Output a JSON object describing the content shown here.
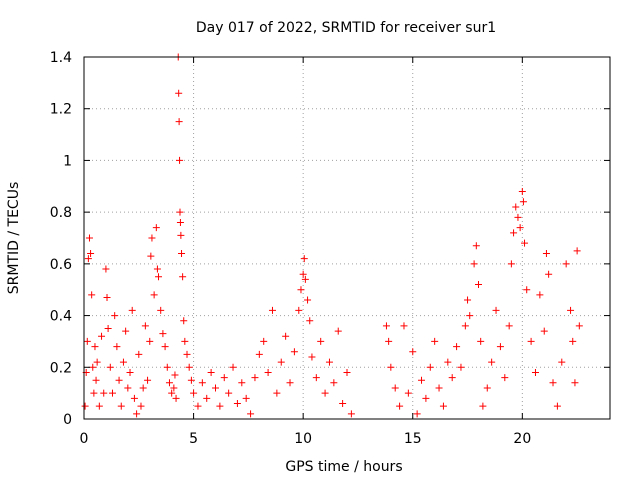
{
  "chart_data": {
    "type": "scatter",
    "title": "Day 017 of 2022, SRMTID for receiver sur1",
    "xlabel": "GPS time / hours",
    "ylabel": "SRMTID / TECUs",
    "xlim": [
      0,
      24
    ],
    "ylim": [
      0,
      1.4
    ],
    "xticks": [
      0,
      5,
      10,
      15,
      20
    ],
    "yticks": [
      0,
      0.2,
      0.4,
      0.6,
      0.8,
      1,
      1.2,
      1.4
    ],
    "ytick_labels": [
      "0",
      "0.2",
      "0.4",
      "0.6",
      "0.8",
      "1",
      "1.2",
      "1.4"
    ],
    "grid": true,
    "marker": "+",
    "series": [
      {
        "name": "SRMTID",
        "color": "#ff0000",
        "points": [
          [
            0.05,
            0.05
          ],
          [
            0.1,
            0.18
          ],
          [
            0.15,
            0.3
          ],
          [
            0.2,
            0.62
          ],
          [
            0.25,
            0.7
          ],
          [
            0.3,
            0.64
          ],
          [
            0.35,
            0.48
          ],
          [
            0.4,
            0.2
          ],
          [
            0.45,
            0.1
          ],
          [
            0.5,
            0.28
          ],
          [
            0.55,
            0.15
          ],
          [
            0.6,
            0.22
          ],
          [
            0.7,
            0.05
          ],
          [
            0.8,
            0.32
          ],
          [
            0.9,
            0.1
          ],
          [
            1.0,
            0.58
          ],
          [
            1.05,
            0.47
          ],
          [
            1.1,
            0.35
          ],
          [
            1.2,
            0.2
          ],
          [
            1.3,
            0.1
          ],
          [
            1.4,
            0.4
          ],
          [
            1.5,
            0.28
          ],
          [
            1.6,
            0.15
          ],
          [
            1.7,
            0.05
          ],
          [
            1.8,
            0.22
          ],
          [
            1.9,
            0.34
          ],
          [
            2.0,
            0.12
          ],
          [
            2.1,
            0.18
          ],
          [
            2.2,
            0.42
          ],
          [
            2.3,
            0.08
          ],
          [
            2.4,
            0.02
          ],
          [
            2.5,
            0.25
          ],
          [
            2.6,
            0.05
          ],
          [
            2.7,
            0.12
          ],
          [
            2.8,
            0.36
          ],
          [
            2.9,
            0.15
          ],
          [
            3.0,
            0.3
          ],
          [
            3.05,
            0.63
          ],
          [
            3.1,
            0.7
          ],
          [
            3.2,
            0.48
          ],
          [
            3.3,
            0.74
          ],
          [
            3.35,
            0.58
          ],
          [
            3.4,
            0.55
          ],
          [
            3.5,
            0.42
          ],
          [
            3.6,
            0.33
          ],
          [
            3.7,
            0.28
          ],
          [
            3.8,
            0.2
          ],
          [
            3.9,
            0.14
          ],
          [
            4.0,
            0.1
          ],
          [
            4.1,
            0.12
          ],
          [
            4.15,
            0.17
          ],
          [
            4.2,
            0.08
          ],
          [
            4.3,
            1.4
          ],
          [
            4.32,
            1.26
          ],
          [
            4.34,
            1.15
          ],
          [
            4.36,
            1.0
          ],
          [
            4.38,
            0.8
          ],
          [
            4.4,
            0.76
          ],
          [
            4.42,
            0.71
          ],
          [
            4.45,
            0.64
          ],
          [
            4.5,
            0.55
          ],
          [
            4.55,
            0.38
          ],
          [
            4.6,
            0.3
          ],
          [
            4.7,
            0.25
          ],
          [
            4.8,
            0.2
          ],
          [
            4.9,
            0.15
          ],
          [
            5.0,
            0.1
          ],
          [
            5.2,
            0.05
          ],
          [
            5.4,
            0.14
          ],
          [
            5.6,
            0.08
          ],
          [
            5.8,
            0.18
          ],
          [
            6.0,
            0.12
          ],
          [
            6.2,
            0.05
          ],
          [
            6.4,
            0.16
          ],
          [
            6.6,
            0.1
          ],
          [
            6.8,
            0.2
          ],
          [
            7.0,
            0.06
          ],
          [
            7.2,
            0.14
          ],
          [
            7.4,
            0.08
          ],
          [
            7.6,
            0.02
          ],
          [
            7.8,
            0.16
          ],
          [
            8.0,
            0.25
          ],
          [
            8.2,
            0.3
          ],
          [
            8.4,
            0.18
          ],
          [
            8.6,
            0.42
          ],
          [
            8.8,
            0.1
          ],
          [
            9.0,
            0.22
          ],
          [
            9.2,
            0.32
          ],
          [
            9.4,
            0.14
          ],
          [
            9.6,
            0.26
          ],
          [
            9.8,
            0.42
          ],
          [
            9.9,
            0.5
          ],
          [
            10.0,
            0.56
          ],
          [
            10.05,
            0.62
          ],
          [
            10.1,
            0.54
          ],
          [
            10.2,
            0.46
          ],
          [
            10.3,
            0.38
          ],
          [
            10.4,
            0.24
          ],
          [
            10.6,
            0.16
          ],
          [
            10.8,
            0.3
          ],
          [
            11.0,
            0.1
          ],
          [
            11.2,
            0.22
          ],
          [
            11.4,
            0.14
          ],
          [
            11.6,
            0.34
          ],
          [
            11.8,
            0.06
          ],
          [
            12.0,
            0.18
          ],
          [
            12.2,
            0.02
          ],
          [
            13.8,
            0.36
          ],
          [
            13.9,
            0.3
          ],
          [
            14.0,
            0.2
          ],
          [
            14.2,
            0.12
          ],
          [
            14.4,
            0.05
          ],
          [
            14.6,
            0.36
          ],
          [
            14.8,
            0.1
          ],
          [
            15.0,
            0.26
          ],
          [
            15.2,
            0.02
          ],
          [
            15.4,
            0.15
          ],
          [
            15.6,
            0.08
          ],
          [
            15.8,
            0.2
          ],
          [
            16.0,
            0.3
          ],
          [
            16.2,
            0.12
          ],
          [
            16.4,
            0.05
          ],
          [
            16.6,
            0.22
          ],
          [
            16.8,
            0.16
          ],
          [
            17.0,
            0.28
          ],
          [
            17.2,
            0.2
          ],
          [
            17.4,
            0.36
          ],
          [
            17.5,
            0.46
          ],
          [
            17.6,
            0.4
          ],
          [
            17.8,
            0.6
          ],
          [
            17.9,
            0.67
          ],
          [
            18.0,
            0.52
          ],
          [
            18.1,
            0.3
          ],
          [
            18.2,
            0.05
          ],
          [
            18.4,
            0.12
          ],
          [
            18.6,
            0.22
          ],
          [
            18.8,
            0.42
          ],
          [
            19.0,
            0.28
          ],
          [
            19.2,
            0.16
          ],
          [
            19.4,
            0.36
          ],
          [
            19.5,
            0.6
          ],
          [
            19.6,
            0.72
          ],
          [
            19.7,
            0.82
          ],
          [
            19.8,
            0.78
          ],
          [
            19.9,
            0.74
          ],
          [
            20.0,
            0.88
          ],
          [
            20.05,
            0.84
          ],
          [
            20.1,
            0.68
          ],
          [
            20.2,
            0.5
          ],
          [
            20.4,
            0.3
          ],
          [
            20.6,
            0.18
          ],
          [
            20.8,
            0.48
          ],
          [
            21.0,
            0.34
          ],
          [
            21.1,
            0.64
          ],
          [
            21.2,
            0.56
          ],
          [
            21.4,
            0.14
          ],
          [
            21.6,
            0.05
          ],
          [
            21.8,
            0.22
          ],
          [
            22.0,
            0.6
          ],
          [
            22.2,
            0.42
          ],
          [
            22.3,
            0.3
          ],
          [
            22.4,
            0.14
          ],
          [
            22.5,
            0.65
          ],
          [
            22.6,
            0.36
          ]
        ]
      }
    ]
  }
}
